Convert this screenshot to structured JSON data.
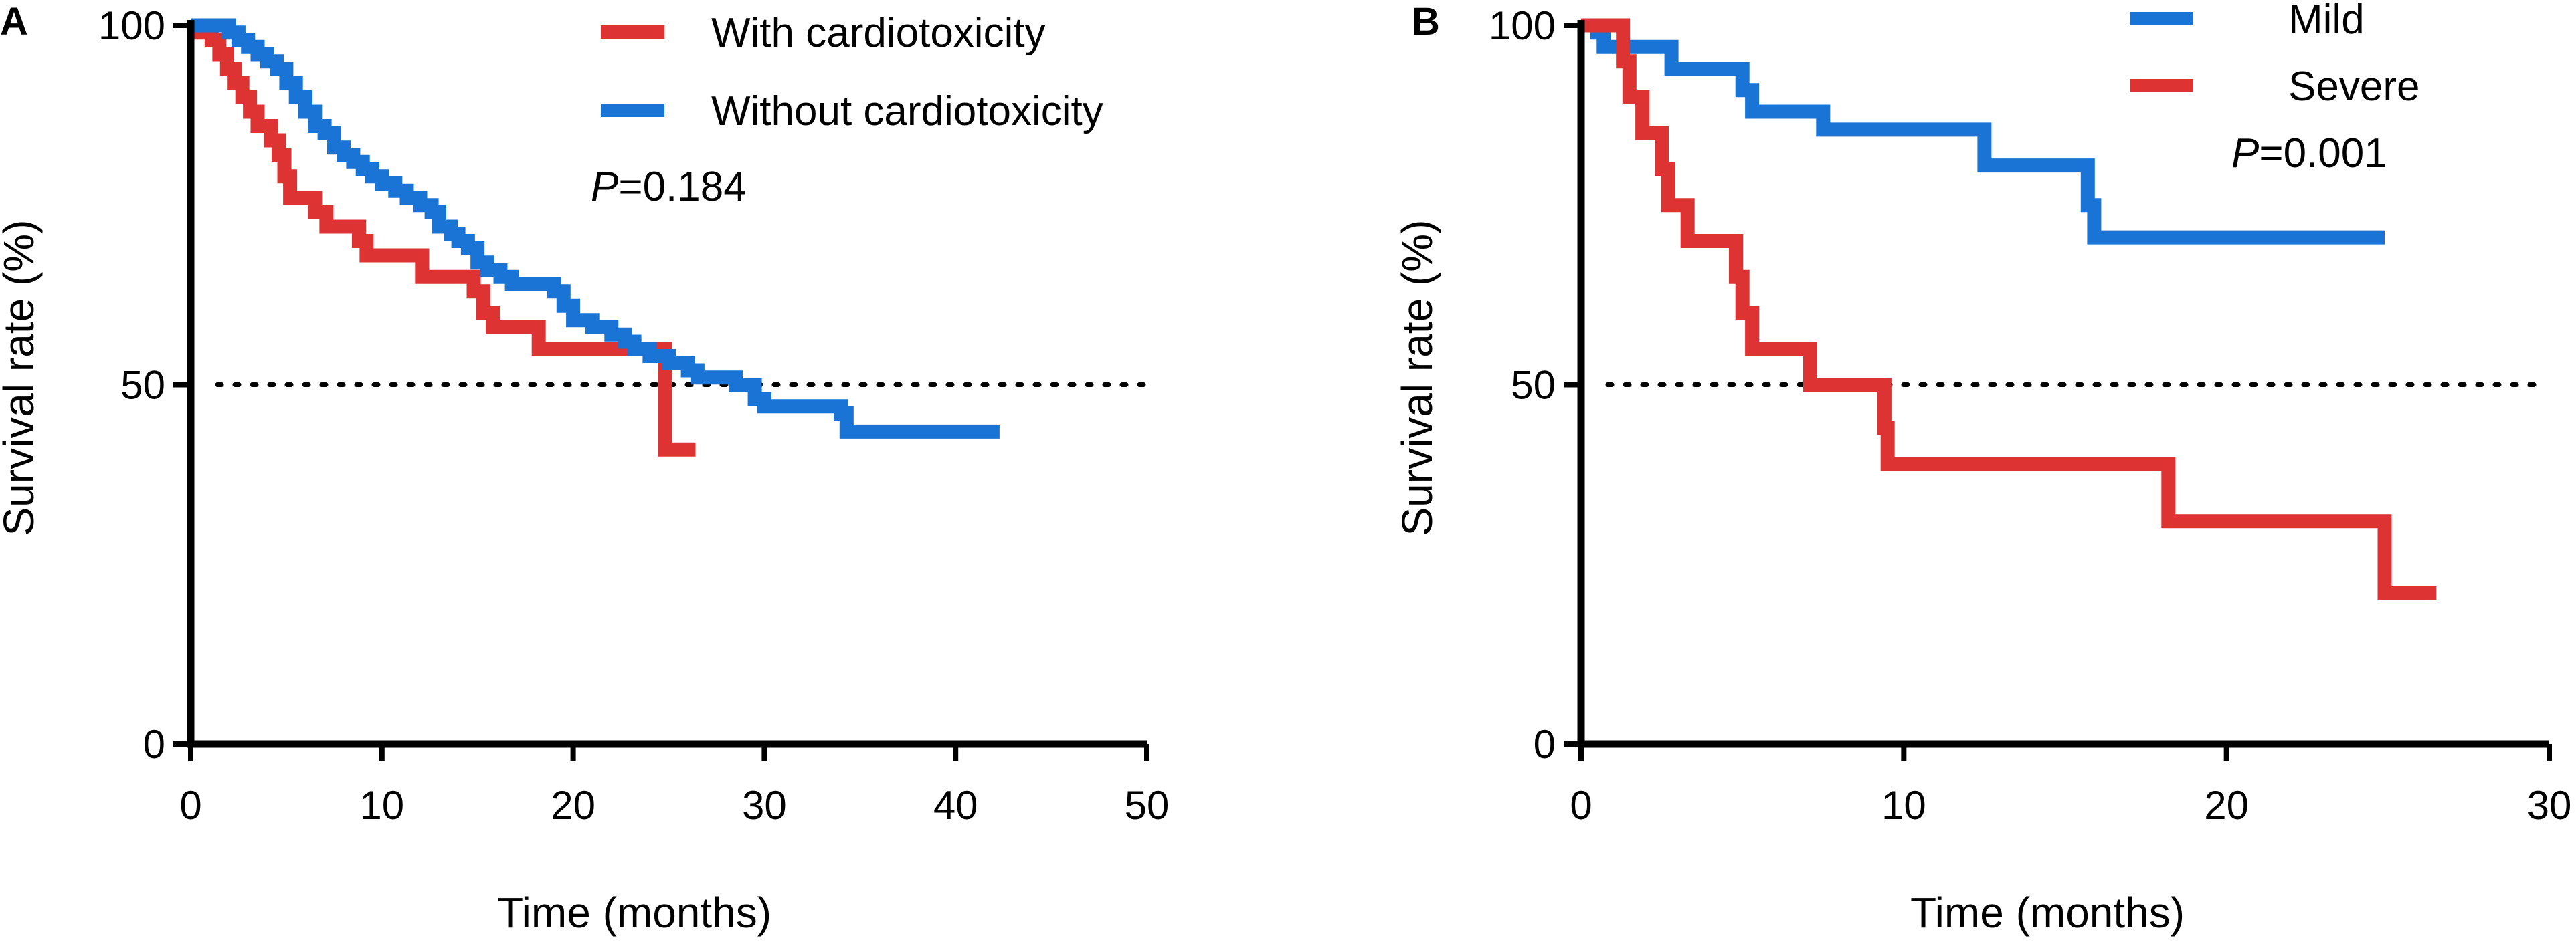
{
  "colors": {
    "red": "#dd3333",
    "blue": "#1a74d6",
    "axis": "#000000",
    "background": "#ffffff"
  },
  "chart_data": [
    {
      "type": "line",
      "subtype": "kaplan-meier",
      "panel_label": "A",
      "xlabel": "Time (months)",
      "ylabel": "Survival rate (%)",
      "xlim": [
        0,
        50
      ],
      "ylim": [
        0,
        100
      ],
      "xticks": [
        0,
        10,
        20,
        30,
        40,
        50
      ],
      "yticks": [
        0,
        50,
        100
      ],
      "reference_line": 50,
      "legend_placement": "top-center",
      "annotation": {
        "p_label": "P",
        "p_rest": "=0.184"
      },
      "series": [
        {
          "name": "With cardiotoxicity",
          "color": "#dd3333",
          "points": [
            [
              0,
              100
            ],
            [
              0.5,
              99
            ],
            [
              1.1,
              98
            ],
            [
              1.5,
              96
            ],
            [
              1.9,
              94
            ],
            [
              2.3,
              92
            ],
            [
              2.7,
              90
            ],
            [
              3.1,
              88
            ],
            [
              3.5,
              86
            ],
            [
              4.2,
              84
            ],
            [
              4.6,
              82
            ],
            [
              4.9,
              79
            ],
            [
              5.2,
              76
            ],
            [
              6.5,
              74
            ],
            [
              7.1,
              72
            ],
            [
              8.8,
              70
            ],
            [
              9.2,
              68
            ],
            [
              12.1,
              65
            ],
            [
              14.8,
              63
            ],
            [
              15.3,
              60
            ],
            [
              15.8,
              58
            ],
            [
              18.2,
              55
            ],
            [
              24.4,
              55
            ],
            [
              24.8,
              41
            ],
            [
              26.4,
              41
            ]
          ]
        },
        {
          "name": "Without cardiotoxicity",
          "color": "#1a74d6",
          "points": [
            [
              0,
              100
            ],
            [
              1.5,
              100
            ],
            [
              2,
              99
            ],
            [
              2.5,
              98
            ],
            [
              3,
              97
            ],
            [
              3.5,
              96
            ],
            [
              4,
              95
            ],
            [
              4.5,
              94
            ],
            [
              5,
              92
            ],
            [
              5.5,
              90
            ],
            [
              6,
              88
            ],
            [
              6.5,
              86
            ],
            [
              7,
              85
            ],
            [
              7.5,
              83
            ],
            [
              8,
              82
            ],
            [
              8.5,
              81
            ],
            [
              9,
              80
            ],
            [
              9.5,
              79
            ],
            [
              10,
              78
            ],
            [
              10.7,
              77
            ],
            [
              11.3,
              76
            ],
            [
              12,
              75
            ],
            [
              12.6,
              74
            ],
            [
              13,
              72
            ],
            [
              13.6,
              71
            ],
            [
              14,
              70
            ],
            [
              14.5,
              69
            ],
            [
              15,
              67
            ],
            [
              15.5,
              66
            ],
            [
              16.2,
              65
            ],
            [
              16.8,
              64
            ],
            [
              19,
              63
            ],
            [
              19.5,
              61
            ],
            [
              20,
              59
            ],
            [
              21,
              58
            ],
            [
              22,
              57
            ],
            [
              22.7,
              56
            ],
            [
              23.2,
              55
            ],
            [
              24,
              54
            ],
            [
              25,
              53
            ],
            [
              26,
              52
            ],
            [
              26.5,
              51
            ],
            [
              28.5,
              50
            ],
            [
              29.5,
              48
            ],
            [
              30,
              47
            ],
            [
              34,
              46
            ],
            [
              34.3,
              43.5
            ],
            [
              42.3,
              43.5
            ]
          ]
        }
      ]
    },
    {
      "type": "line",
      "subtype": "kaplan-meier",
      "panel_label": "B",
      "xlabel": "Time (months)",
      "ylabel": "Survival rate (%)",
      "xlim": [
        0,
        30
      ],
      "ylim": [
        0,
        100
      ],
      "xticks": [
        0,
        10,
        20,
        30
      ],
      "yticks": [
        0,
        50,
        100
      ],
      "reference_line": 50,
      "legend_placement": "top-right",
      "annotation": {
        "p_label": "P",
        "p_rest": "=0.001"
      },
      "series": [
        {
          "name": "Mild",
          "color": "#1a74d6",
          "points": [
            [
              0,
              100
            ],
            [
              0.5,
              99
            ],
            [
              0.7,
              97
            ],
            [
              2.5,
              97
            ],
            [
              2.8,
              94
            ],
            [
              4.8,
              94
            ],
            [
              5,
              91
            ],
            [
              5.3,
              88
            ],
            [
              7.3,
              88
            ],
            [
              7.5,
              85.5
            ],
            [
              12.3,
              85.5
            ],
            [
              12.5,
              80.5
            ],
            [
              15.5,
              80.5
            ],
            [
              15.7,
              75
            ],
            [
              15.9,
              70.5
            ],
            [
              24.9,
              70.5
            ]
          ]
        },
        {
          "name": "Severe",
          "color": "#dd3333",
          "points": [
            [
              0,
              100
            ],
            [
              1.1,
              100
            ],
            [
              1.3,
              95
            ],
            [
              1.5,
              90
            ],
            [
              1.9,
              85
            ],
            [
              2.5,
              80
            ],
            [
              2.7,
              75
            ],
            [
              3.3,
              70
            ],
            [
              4.8,
              65
            ],
            [
              5,
              60
            ],
            [
              5.3,
              55
            ],
            [
              7.1,
              50
            ],
            [
              9.2,
              50
            ],
            [
              9.4,
              44
            ],
            [
              9.5,
              39
            ],
            [
              18.1,
              39
            ],
            [
              18.2,
              31
            ],
            [
              24.8,
              31
            ],
            [
              24.9,
              21
            ],
            [
              26.5,
              21
            ]
          ]
        }
      ]
    }
  ]
}
